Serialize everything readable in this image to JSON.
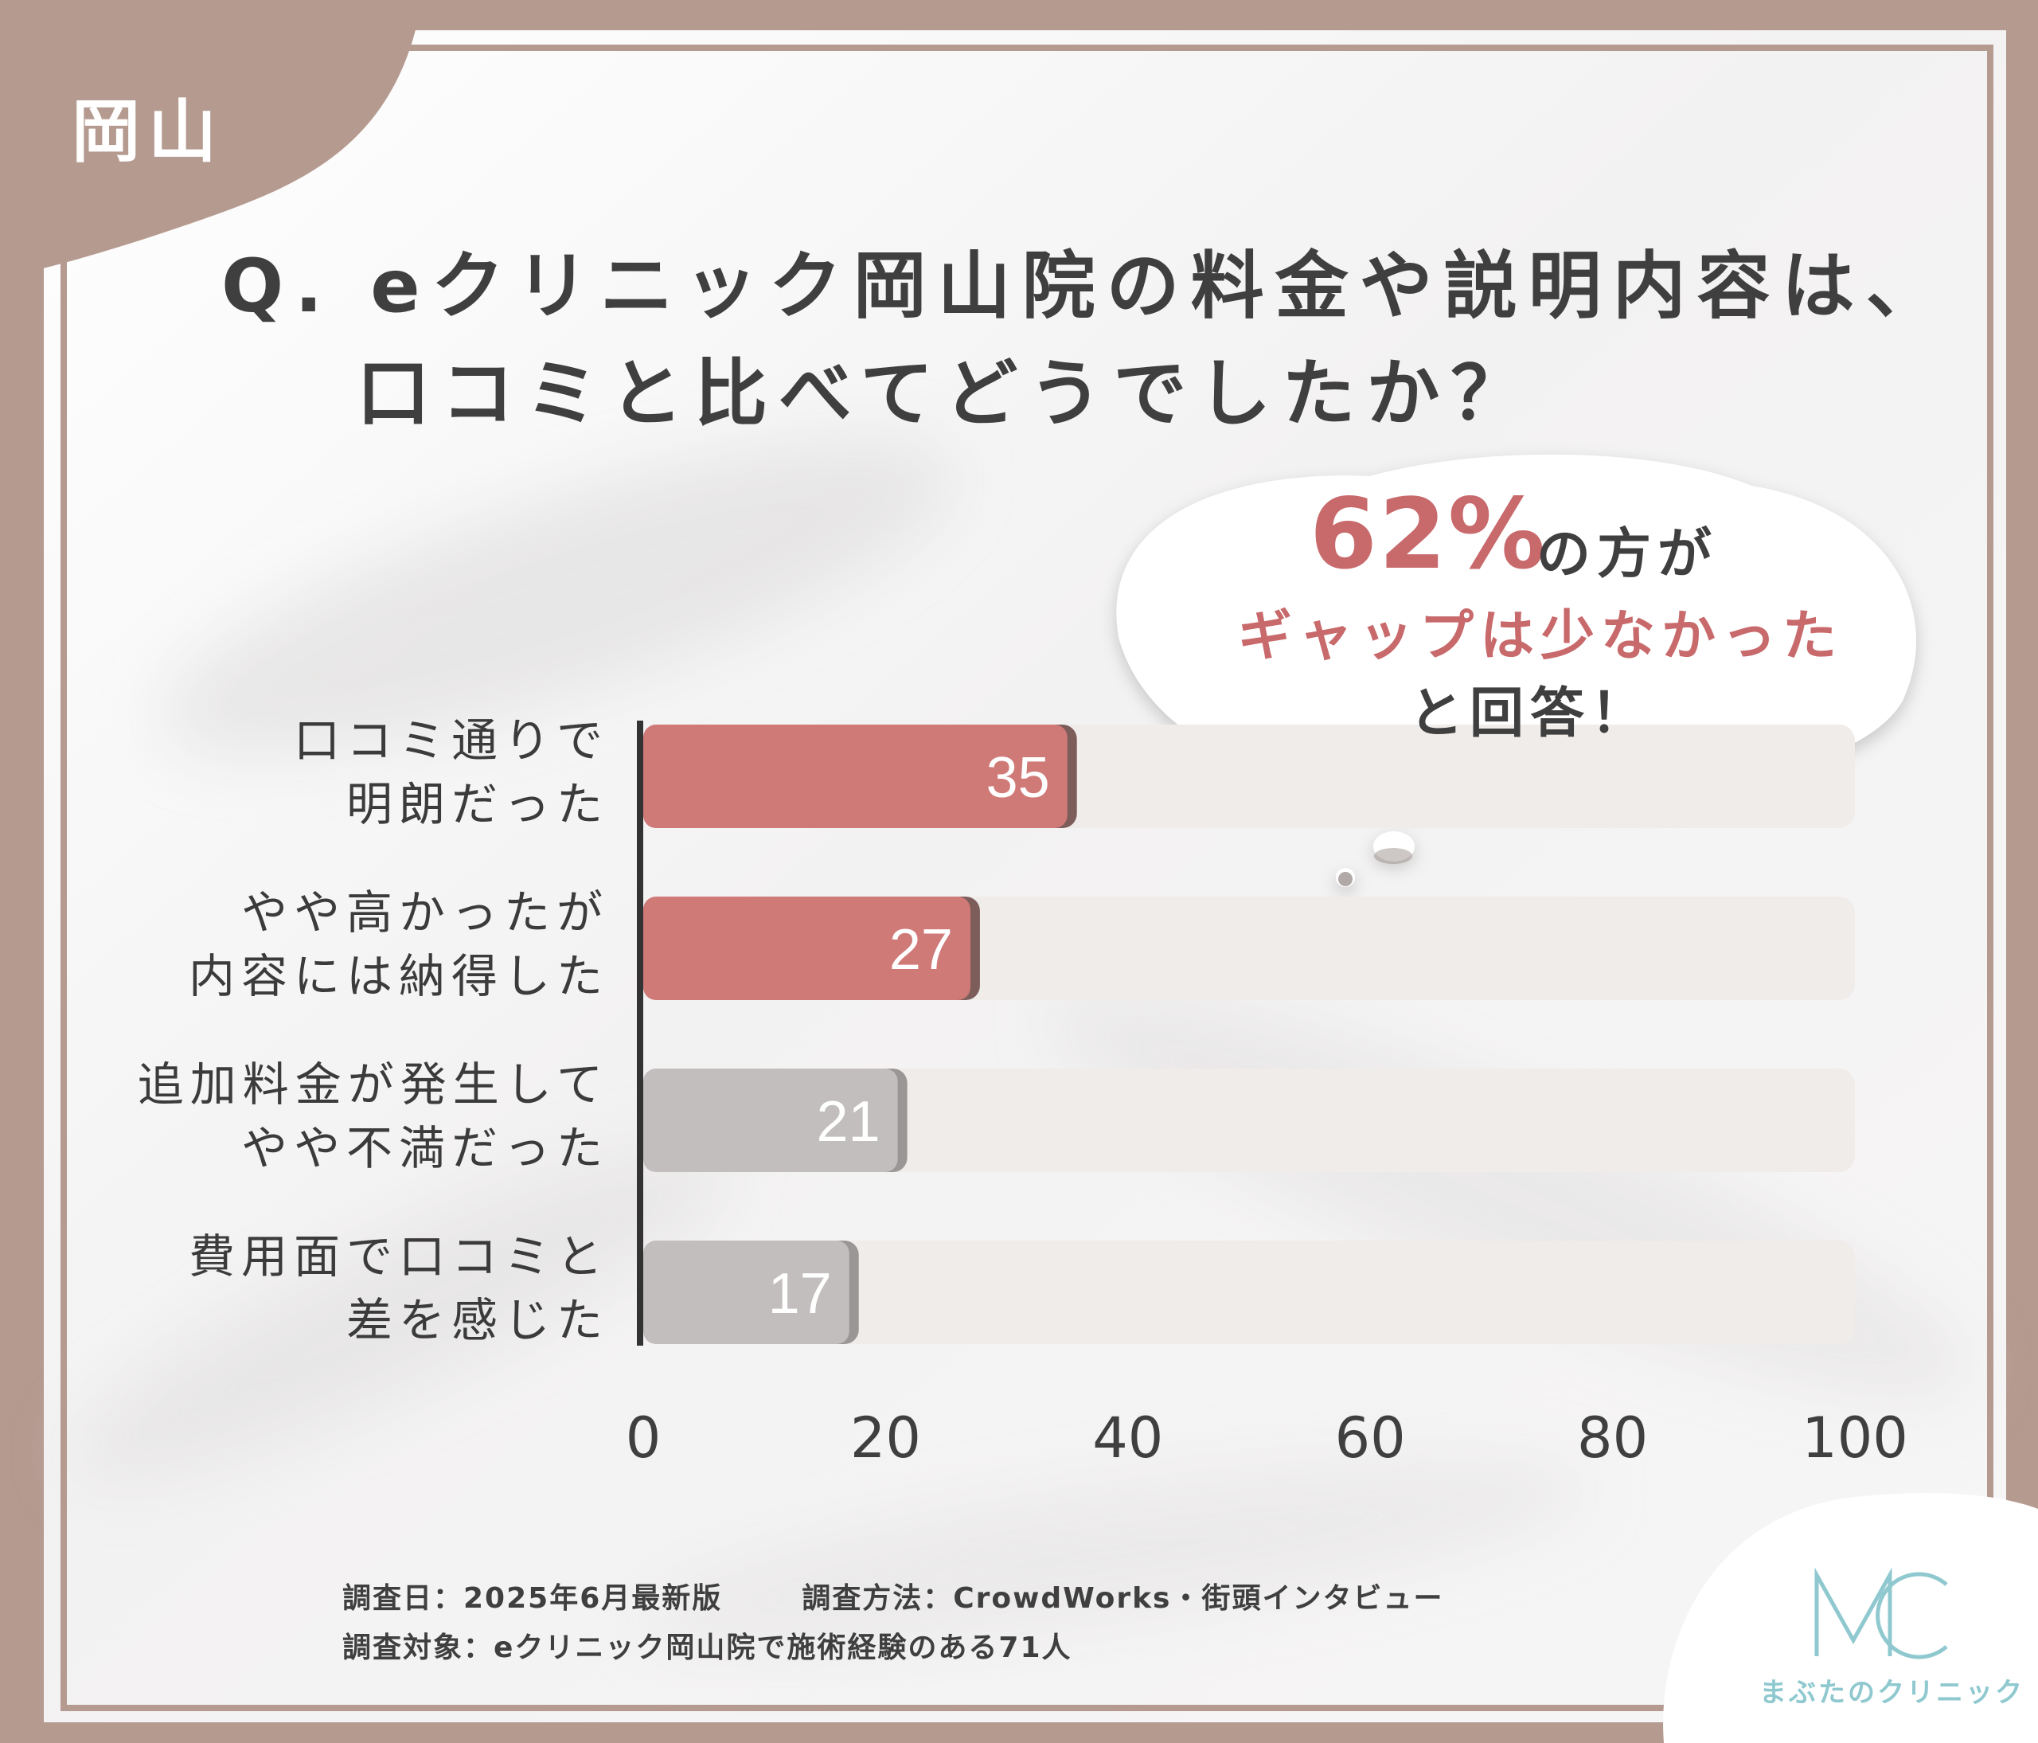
{
  "region_tag": "岡山",
  "title": {
    "line1": "Q. eクリニック岡山院の料金や説明内容は、",
    "line2": "口コミと比べてどうでしたか？"
  },
  "callout": {
    "percent": "62%",
    "suffix": "の方が",
    "highlight": "ギャップは少なかった",
    "ending": "と回答！"
  },
  "chart_data": {
    "type": "bar",
    "orientation": "horizontal",
    "categories": [
      [
        "口コミ通りで",
        "明朗だった"
      ],
      [
        "やや高かったが",
        "内容には納得した"
      ],
      [
        "追加料金が発生して",
        "やや不満だった"
      ],
      [
        "費用面で口コミと",
        "差を感じた"
      ]
    ],
    "values": [
      35,
      27,
      21,
      17
    ],
    "value_labels": [
      "35",
      "27",
      "21",
      "17"
    ],
    "xlim": [
      0,
      100
    ],
    "x_ticks": [
      "0",
      "20",
      "40",
      "60",
      "80",
      "100"
    ],
    "grid": false,
    "colors": {
      "highlight": "#d07a78",
      "highlight_shadow": "#7d5d5a",
      "muted": "#c2bebd",
      "muted_shadow": "#9a9695",
      "track": "#efecea",
      "axis": "#333333"
    },
    "highlighted_bars": [
      0,
      1
    ]
  },
  "footnotes": {
    "date": "調査日：2025年6月最新版",
    "method": "調査方法：CrowdWorks・街頭インタビュー",
    "target": "調査対象：eクリニック岡山院で施術経験のある71人"
  },
  "logo": {
    "mark": "MC",
    "name": "まぶたのクリニック",
    "color": "#8fc9cf"
  },
  "colors": {
    "frame": "#b59a90",
    "panel": "#f6f5f5",
    "text": "#3f3f3f",
    "accent": "#c8696b"
  }
}
